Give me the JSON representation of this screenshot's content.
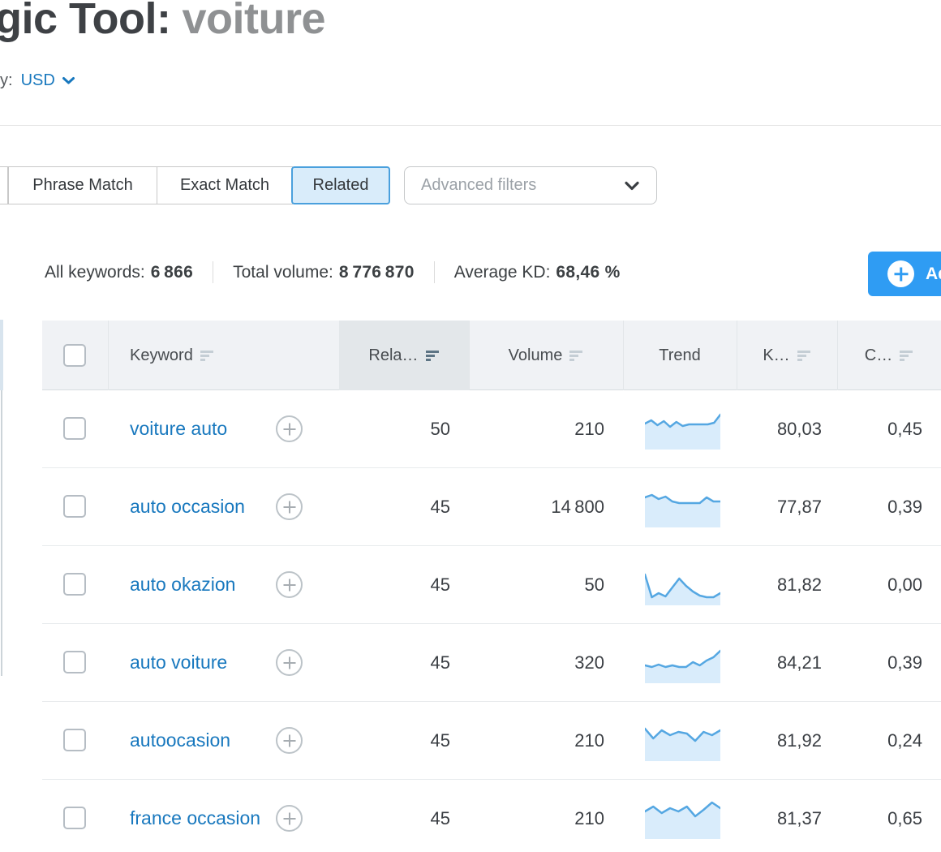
{
  "header": {
    "title_prefix": "gic Tool:",
    "title_query": "voiture",
    "currency_label": "y:",
    "currency_value": "USD"
  },
  "tabs": {
    "phrase": "Phrase Match",
    "exact": "Exact Match",
    "related": "Related",
    "active": "Related",
    "advanced_filters": "Advanced filters"
  },
  "stats": {
    "keywords_label": "All keywords:",
    "keywords_value": "6 866",
    "volume_label": "Total volume:",
    "volume_value": "8 776 870",
    "kd_label": "Average KD:",
    "kd_value": "68,46 %"
  },
  "add_button": {
    "label": "Ad"
  },
  "table": {
    "columns": {
      "keyword": "Keyword",
      "related": "Rela…",
      "volume": "Volume",
      "trend": "Trend",
      "kd": "K…",
      "cpc": "C…"
    },
    "rows": [
      {
        "keyword": "voiture auto",
        "related": "50",
        "volume": "210",
        "kd": "80,03",
        "cpc": "0,45",
        "trend": [
          18,
          14,
          20,
          15,
          22,
          16,
          21,
          19,
          19,
          19,
          19,
          17,
          7
        ]
      },
      {
        "keyword": "auto occasion",
        "related": "45",
        "volume": "14 800",
        "kd": "77,87",
        "cpc": "0,39",
        "trend": [
          13,
          10,
          15,
          12,
          18,
          20,
          20,
          20,
          20,
          13,
          18,
          18
        ]
      },
      {
        "keyword": "auto okazion",
        "related": "45",
        "volume": "50",
        "kd": "81,82",
        "cpc": "0,00",
        "trend": [
          12,
          40,
          35,
          39,
          28,
          17,
          26,
          33,
          38,
          40,
          40,
          35
        ]
      },
      {
        "keyword": "auto voiture",
        "related": "45",
        "volume": "320",
        "kd": "84,21",
        "cpc": "0,39",
        "trend": [
          28,
          30,
          27,
          30,
          28,
          30,
          30,
          24,
          28,
          22,
          18,
          10
        ]
      },
      {
        "keyword": "autoocasion",
        "related": "45",
        "volume": "210",
        "kd": "81,92",
        "cpc": "0,24",
        "trend": [
          10,
          22,
          12,
          18,
          14,
          16,
          25,
          14,
          18,
          12
        ]
      },
      {
        "keyword": "france occasion",
        "related": "45",
        "volume": "210",
        "kd": "81,37",
        "cpc": "0,65",
        "trend": [
          16,
          10,
          18,
          12,
          16,
          10,
          22,
          14,
          5,
          12
        ]
      }
    ]
  },
  "colors": {
    "accent-blue": "#2f9cf3",
    "link-blue": "#1878be",
    "tab-active-border": "#4aa0dd",
    "tab-active-bg": "#d9ecfa",
    "sparkline-line": "#55a7e2",
    "sparkline-fill": "#d9ecfb"
  }
}
